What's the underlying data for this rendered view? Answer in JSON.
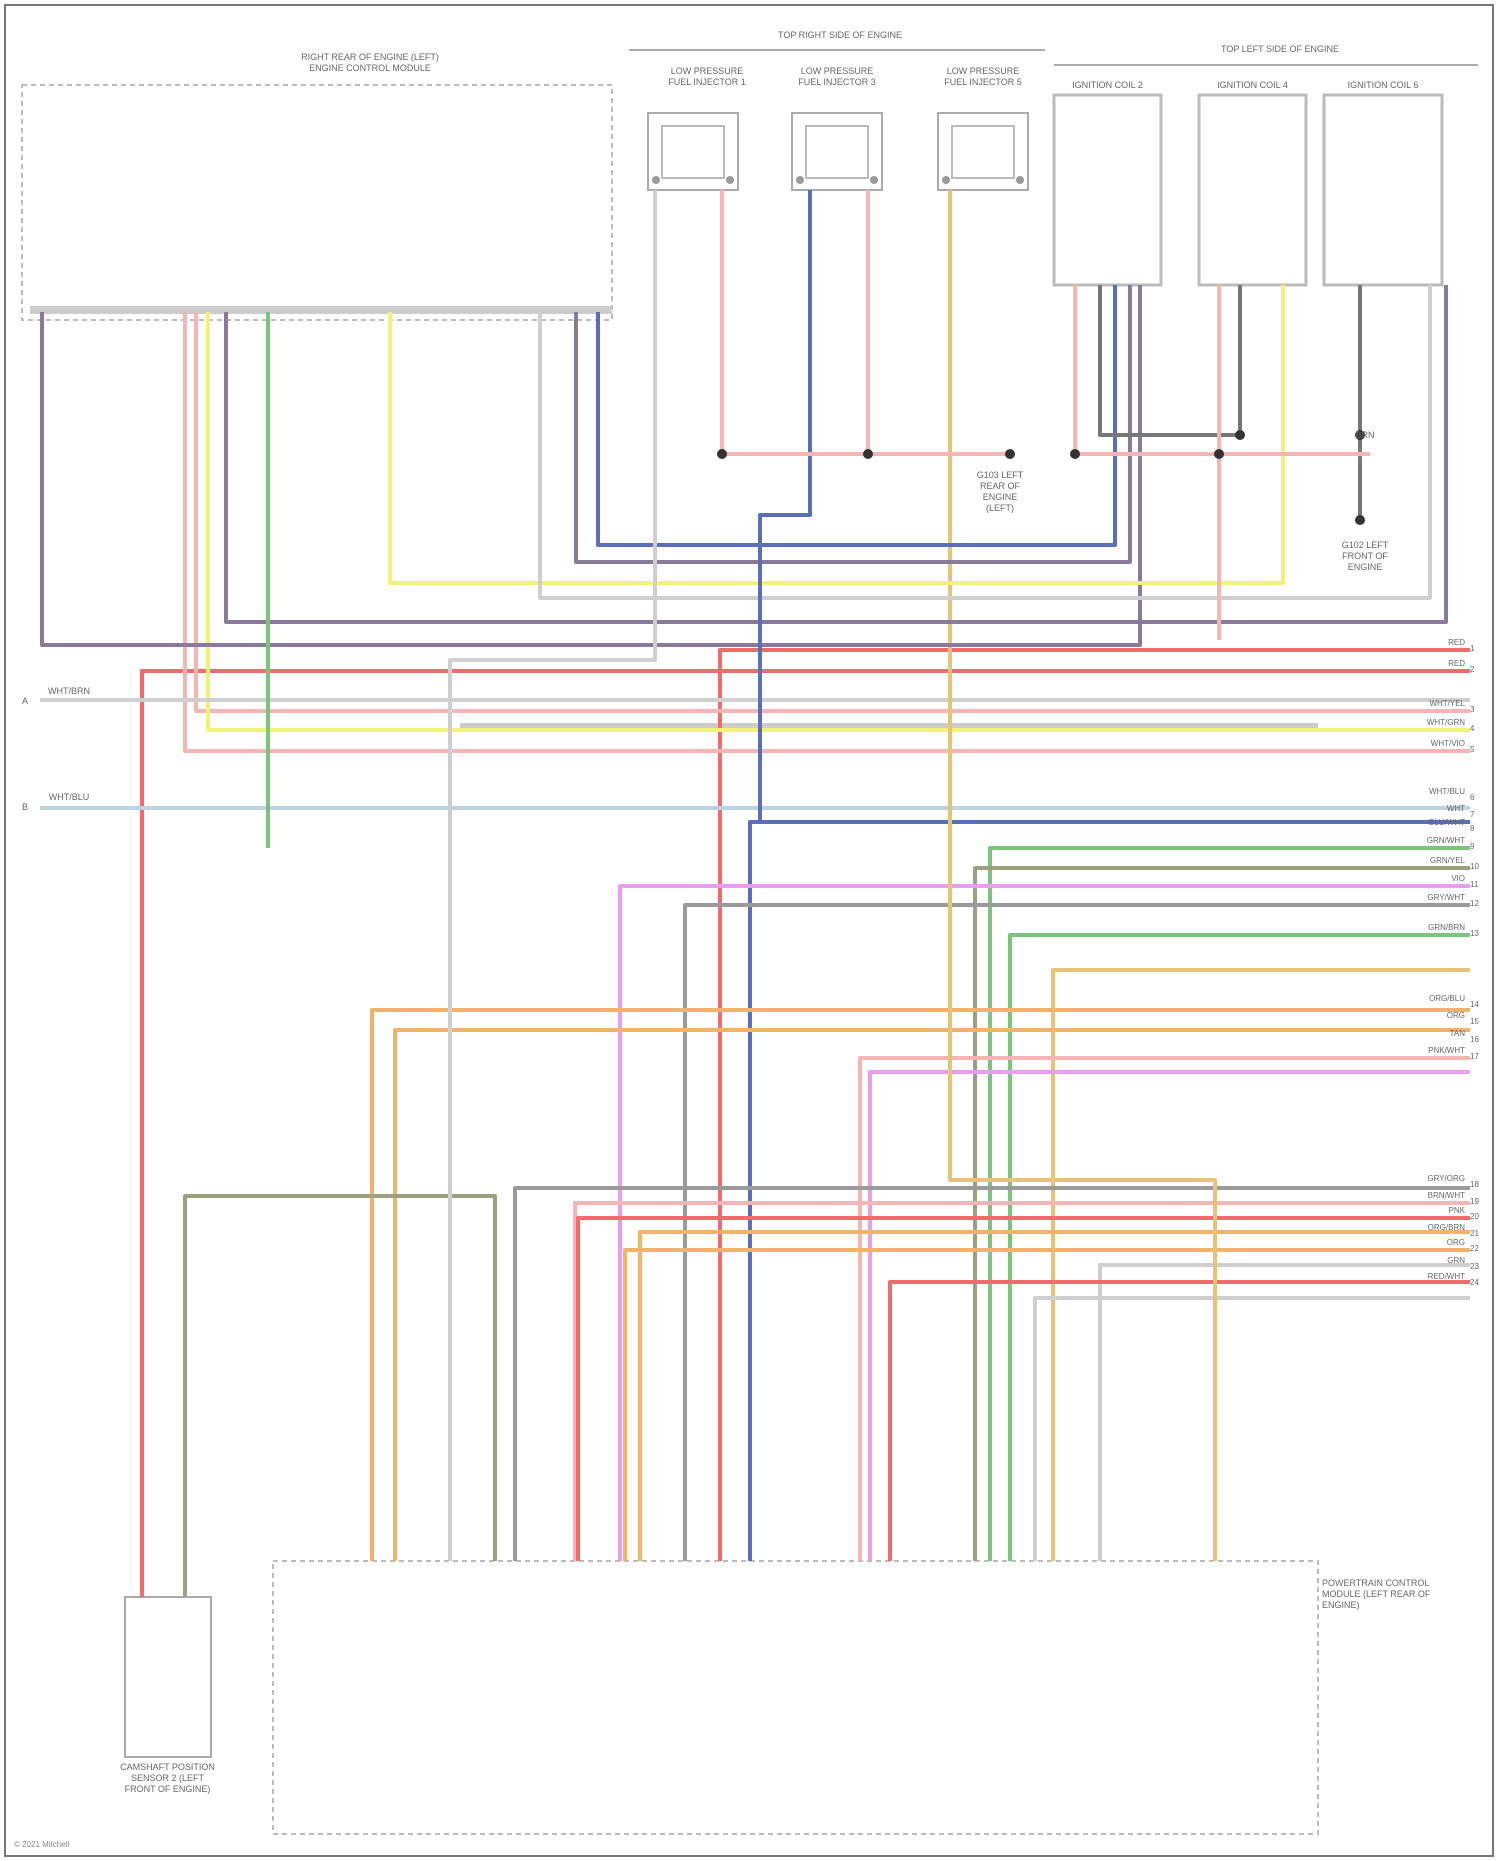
{
  "ecm": {
    "title_line1": "RIGHT REAR OF ENGINE (LEFT)",
    "title_line2": "ENGINE CONTROL MODULE"
  },
  "top_right_section": {
    "title": "TOP RIGHT SIDE OF ENGINE"
  },
  "top_left_section": {
    "title": "TOP LEFT SIDE OF ENGINE"
  },
  "injectors": [
    {
      "label": "LOW PRESSURE FUEL INJECTOR 1"
    },
    {
      "label": "LOW PRESSURE FUEL INJECTOR 3"
    },
    {
      "label": "LOW PRESSURE FUEL INJECTOR 5"
    }
  ],
  "coils": [
    {
      "label": "IGNITION COIL 2"
    },
    {
      "label": "IGNITION COIL 4"
    },
    {
      "label": "IGNITION COIL 6"
    }
  ],
  "grounds": [
    {
      "label": "G103 LEFT REAR OF ENGINE (LEFT)"
    },
    {
      "label": "G102 LEFT FRONT OF ENGINE"
    }
  ],
  "ground_wire_label": "BRN",
  "left_refs": [
    {
      "letter": "A",
      "label": "WHT/BRN"
    },
    {
      "letter": "B",
      "label": "WHT/BLU"
    }
  ],
  "pcm": {
    "label": "POWERTRAIN CONTROL MODULE (LEFT REAR OF ENGINE)"
  },
  "cam_sensor": {
    "label": "CAMSHAFT POSITION SENSOR 2 (LEFT FRONT OF ENGINE)"
  },
  "connector_rows": [
    {
      "label": "RED",
      "num": "1"
    },
    {
      "label": "RED",
      "num": "2"
    },
    {
      "label": "WHT/YEL",
      "num": "3"
    },
    {
      "label": "WHT/GRN",
      "num": "4"
    },
    {
      "label": "WHT/VIO",
      "num": "5"
    },
    {
      "label": "WHT/BLU",
      "num": "6"
    },
    {
      "label": "WHT",
      "num": "7"
    },
    {
      "label": "BLU/WHT",
      "num": "8"
    },
    {
      "label": "GRN/WHT",
      "num": "9"
    },
    {
      "label": "GRN/YEL",
      "num": "10"
    },
    {
      "label": "VIO",
      "num": "11"
    },
    {
      "label": "GRY/WHT",
      "num": "12"
    },
    {
      "label": "GRN/BRN",
      "num": "13"
    },
    {
      "label": "ORG/BLU",
      "num": "14"
    },
    {
      "label": "ORG",
      "num": "15"
    },
    {
      "label": "TAN",
      "num": "16"
    },
    {
      "label": "PNK/WHT",
      "num": "17"
    },
    {
      "label": "GRY/ORG",
      "num": "18"
    },
    {
      "label": "BRN/WHT",
      "num": "19"
    },
    {
      "label": "PNK",
      "num": "20"
    },
    {
      "label": "ORG/BRN",
      "num": "21"
    },
    {
      "label": "ORG",
      "num": "22"
    },
    {
      "label": "GRN",
      "num": "23"
    },
    {
      "label": "RED/WHT",
      "num": "24"
    }
  ],
  "wire_colors": {
    "red": "#f26b6b",
    "pink": "#f5b5b5",
    "yellow": "#f4f07a",
    "purple": "#8a7a9a",
    "blue": "#5a6fb8",
    "green": "#7cc47c",
    "olive": "#9aa080",
    "orange": "#f2b26a",
    "violet": "#ea9cf0",
    "gray": "#9a9a9a",
    "lightgray": "#cfcfcf",
    "tan": "#e6c27a",
    "darkgray": "#777777",
    "lightblue": "#b9d3e0"
  },
  "footer": "© 2021 Mitchell"
}
